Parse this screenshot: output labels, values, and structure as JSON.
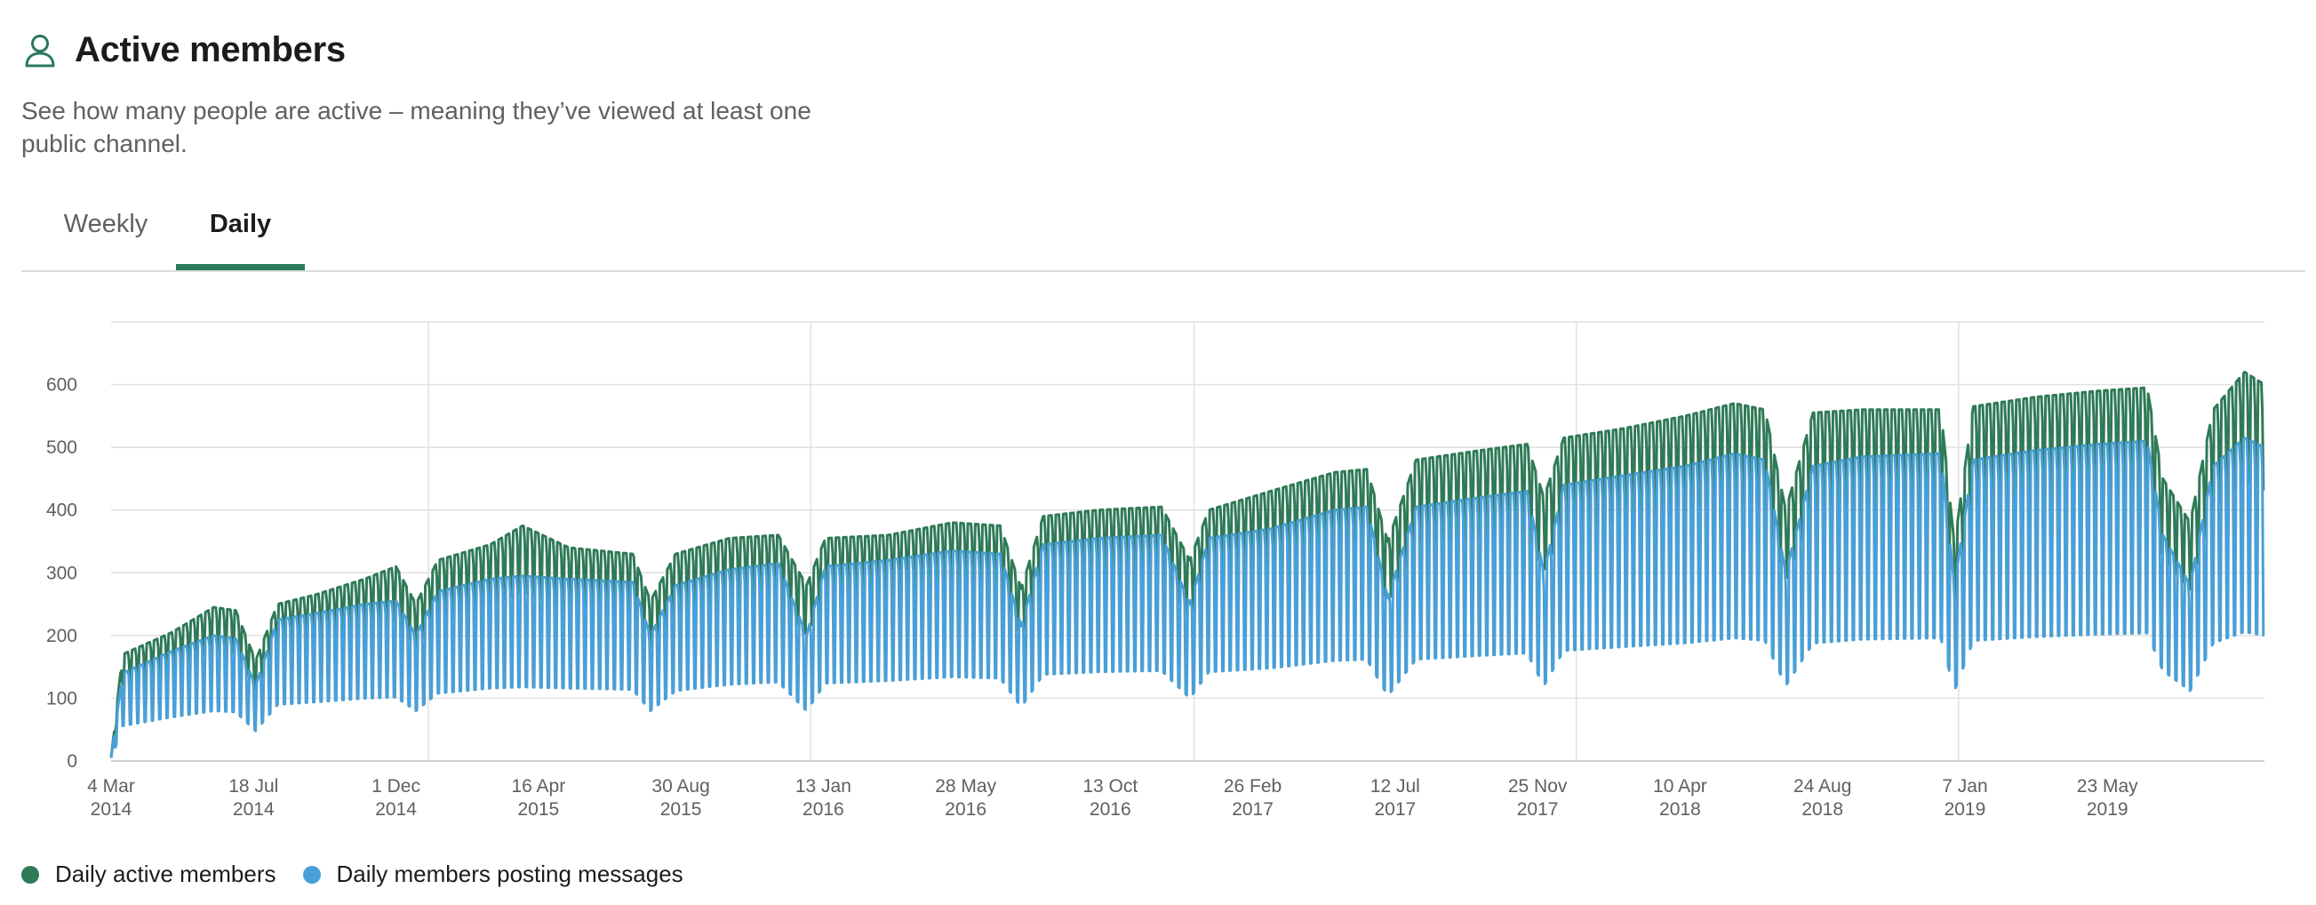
{
  "header": {
    "icon": "person-icon",
    "title": "Active members",
    "description": "See how many people are active – meaning they’ve viewed at least one public channel."
  },
  "tabs": [
    {
      "label": "Weekly",
      "active": false
    },
    {
      "label": "Daily",
      "active": true
    }
  ],
  "colors": {
    "accent": "#2b7a5c",
    "active_members": "#2f7a57",
    "posting_members": "#4a9fd6",
    "grid": "#e1e1e1"
  },
  "chart_data": {
    "type": "area",
    "title": "",
    "xlabel": "",
    "ylabel": "",
    "ylim": [
      0,
      700
    ],
    "yticks": [
      0,
      100,
      200,
      300,
      400,
      500,
      600
    ],
    "grid": true,
    "legend_position": "bottom-left",
    "x_tick_labels": [
      {
        "day": "4 Mar",
        "year": "2014",
        "date": "2014-03-04"
      },
      {
        "day": "18 Jul",
        "year": "2014",
        "date": "2014-07-18"
      },
      {
        "day": "1 Dec",
        "year": "2014",
        "date": "2014-12-01"
      },
      {
        "day": "16 Apr",
        "year": "2015",
        "date": "2015-04-16"
      },
      {
        "day": "30 Aug",
        "year": "2015",
        "date": "2015-08-30"
      },
      {
        "day": "13 Jan",
        "year": "2016",
        "date": "2016-01-13"
      },
      {
        "day": "28 May",
        "year": "2016",
        "date": "2016-05-28"
      },
      {
        "day": "13 Oct",
        "year": "2016",
        "date": "2016-10-13"
      },
      {
        "day": "26 Feb",
        "year": "2017",
        "date": "2017-02-26"
      },
      {
        "day": "12 Jul",
        "year": "2017",
        "date": "2017-07-12"
      },
      {
        "day": "25 Nov",
        "year": "2017",
        "date": "2017-11-25"
      },
      {
        "day": "10 Apr",
        "year": "2018",
        "date": "2018-04-10"
      },
      {
        "day": "24 Aug",
        "year": "2018",
        "date": "2018-08-24"
      },
      {
        "day": "7 Jan",
        "year": "2019",
        "date": "2019-01-07"
      },
      {
        "day": "23 May",
        "year": "2019",
        "date": "2019-05-23"
      }
    ],
    "x_range": [
      "2014-03-04",
      "2019-10-20"
    ],
    "series": [
      {
        "name": "Daily active members",
        "color": "#2f7a57",
        "weekday_peaks": [
          [
            "2014-03-04",
            5
          ],
          [
            "2014-03-15",
            170
          ],
          [
            "2014-05-01",
            205
          ],
          [
            "2014-06-10",
            245
          ],
          [
            "2014-07-01",
            240
          ],
          [
            "2014-07-20",
            160
          ],
          [
            "2014-08-10",
            250
          ],
          [
            "2014-09-15",
            265
          ],
          [
            "2014-11-01",
            290
          ],
          [
            "2014-12-01",
            310
          ],
          [
            "2014-12-20",
            250
          ],
          [
            "2015-01-10",
            320
          ],
          [
            "2015-03-01",
            345
          ],
          [
            "2015-04-01",
            375
          ],
          [
            "2015-05-15",
            340
          ],
          [
            "2015-07-15",
            330
          ],
          [
            "2015-08-01",
            255
          ],
          [
            "2015-08-25",
            330
          ],
          [
            "2015-10-15",
            355
          ],
          [
            "2015-12-01",
            360
          ],
          [
            "2015-12-28",
            280
          ],
          [
            "2016-01-15",
            355
          ],
          [
            "2016-03-15",
            360
          ],
          [
            "2016-05-15",
            380
          ],
          [
            "2016-06-30",
            375
          ],
          [
            "2016-07-20",
            275
          ],
          [
            "2016-08-10",
            390
          ],
          [
            "2016-10-01",
            400
          ],
          [
            "2016-12-01",
            405
          ],
          [
            "2016-12-28",
            320
          ],
          [
            "2017-01-15",
            400
          ],
          [
            "2017-03-15",
            430
          ],
          [
            "2017-05-15",
            460
          ],
          [
            "2017-06-15",
            465
          ],
          [
            "2017-07-05",
            350
          ],
          [
            "2017-08-01",
            480
          ],
          [
            "2017-10-01",
            495
          ],
          [
            "2017-11-15",
            505
          ],
          [
            "2017-12-01",
            420
          ],
          [
            "2017-12-20",
            515
          ],
          [
            "2018-02-15",
            530
          ],
          [
            "2018-04-15",
            550
          ],
          [
            "2018-06-01",
            570
          ],
          [
            "2018-06-30",
            560
          ],
          [
            "2018-07-20",
            400
          ],
          [
            "2018-08-15",
            555
          ],
          [
            "2018-10-01",
            560
          ],
          [
            "2018-12-15",
            560
          ],
          [
            "2018-12-28",
            345
          ],
          [
            "2019-01-15",
            565
          ],
          [
            "2019-03-15",
            580
          ],
          [
            "2019-05-15",
            590
          ],
          [
            "2019-06-30",
            595
          ],
          [
            "2019-07-15",
            450
          ],
          [
            "2019-08-10",
            380
          ],
          [
            "2019-09-01",
            560
          ],
          [
            "2019-10-01",
            620
          ],
          [
            "2019-10-20",
            600
          ]
        ]
      },
      {
        "name": "Daily members posting messages",
        "color": "#4a9fd6",
        "weekday_peaks": [
          [
            "2014-03-04",
            5
          ],
          [
            "2014-03-15",
            140
          ],
          [
            "2014-05-01",
            175
          ],
          [
            "2014-06-10",
            200
          ],
          [
            "2014-07-01",
            195
          ],
          [
            "2014-07-20",
            120
          ],
          [
            "2014-08-10",
            225
          ],
          [
            "2014-09-15",
            235
          ],
          [
            "2014-11-01",
            250
          ],
          [
            "2014-12-01",
            255
          ],
          [
            "2014-12-20",
            200
          ],
          [
            "2015-01-10",
            270
          ],
          [
            "2015-03-01",
            290
          ],
          [
            "2015-04-01",
            295
          ],
          [
            "2015-05-15",
            290
          ],
          [
            "2015-07-15",
            285
          ],
          [
            "2015-08-01",
            200
          ],
          [
            "2015-08-25",
            280
          ],
          [
            "2015-10-15",
            305
          ],
          [
            "2015-12-01",
            315
          ],
          [
            "2015-12-28",
            200
          ],
          [
            "2016-01-15",
            310
          ],
          [
            "2016-03-15",
            320
          ],
          [
            "2016-05-15",
            335
          ],
          [
            "2016-06-30",
            330
          ],
          [
            "2016-07-20",
            215
          ],
          [
            "2016-08-10",
            345
          ],
          [
            "2016-10-01",
            355
          ],
          [
            "2016-12-01",
            360
          ],
          [
            "2016-12-28",
            250
          ],
          [
            "2017-01-15",
            355
          ],
          [
            "2017-03-15",
            370
          ],
          [
            "2017-05-15",
            400
          ],
          [
            "2017-06-15",
            405
          ],
          [
            "2017-07-05",
            260
          ],
          [
            "2017-08-01",
            405
          ],
          [
            "2017-10-01",
            420
          ],
          [
            "2017-11-15",
            430
          ],
          [
            "2017-12-01",
            300
          ],
          [
            "2017-12-20",
            440
          ],
          [
            "2018-02-15",
            455
          ],
          [
            "2018-04-15",
            470
          ],
          [
            "2018-06-01",
            490
          ],
          [
            "2018-06-30",
            480
          ],
          [
            "2018-07-20",
            300
          ],
          [
            "2018-08-15",
            470
          ],
          [
            "2018-10-01",
            485
          ],
          [
            "2018-12-15",
            490
          ],
          [
            "2018-12-28",
            280
          ],
          [
            "2019-01-15",
            480
          ],
          [
            "2019-03-15",
            495
          ],
          [
            "2019-05-15",
            505
          ],
          [
            "2019-06-30",
            510
          ],
          [
            "2019-07-15",
            360
          ],
          [
            "2019-08-10",
            280
          ],
          [
            "2019-09-01",
            470
          ],
          [
            "2019-10-01",
            515
          ],
          [
            "2019-10-20",
            500
          ]
        ]
      }
    ]
  },
  "legend": [
    {
      "label": "Daily active members",
      "color": "#2f7a57"
    },
    {
      "label": "Daily members posting messages",
      "color": "#4a9fd6"
    }
  ]
}
